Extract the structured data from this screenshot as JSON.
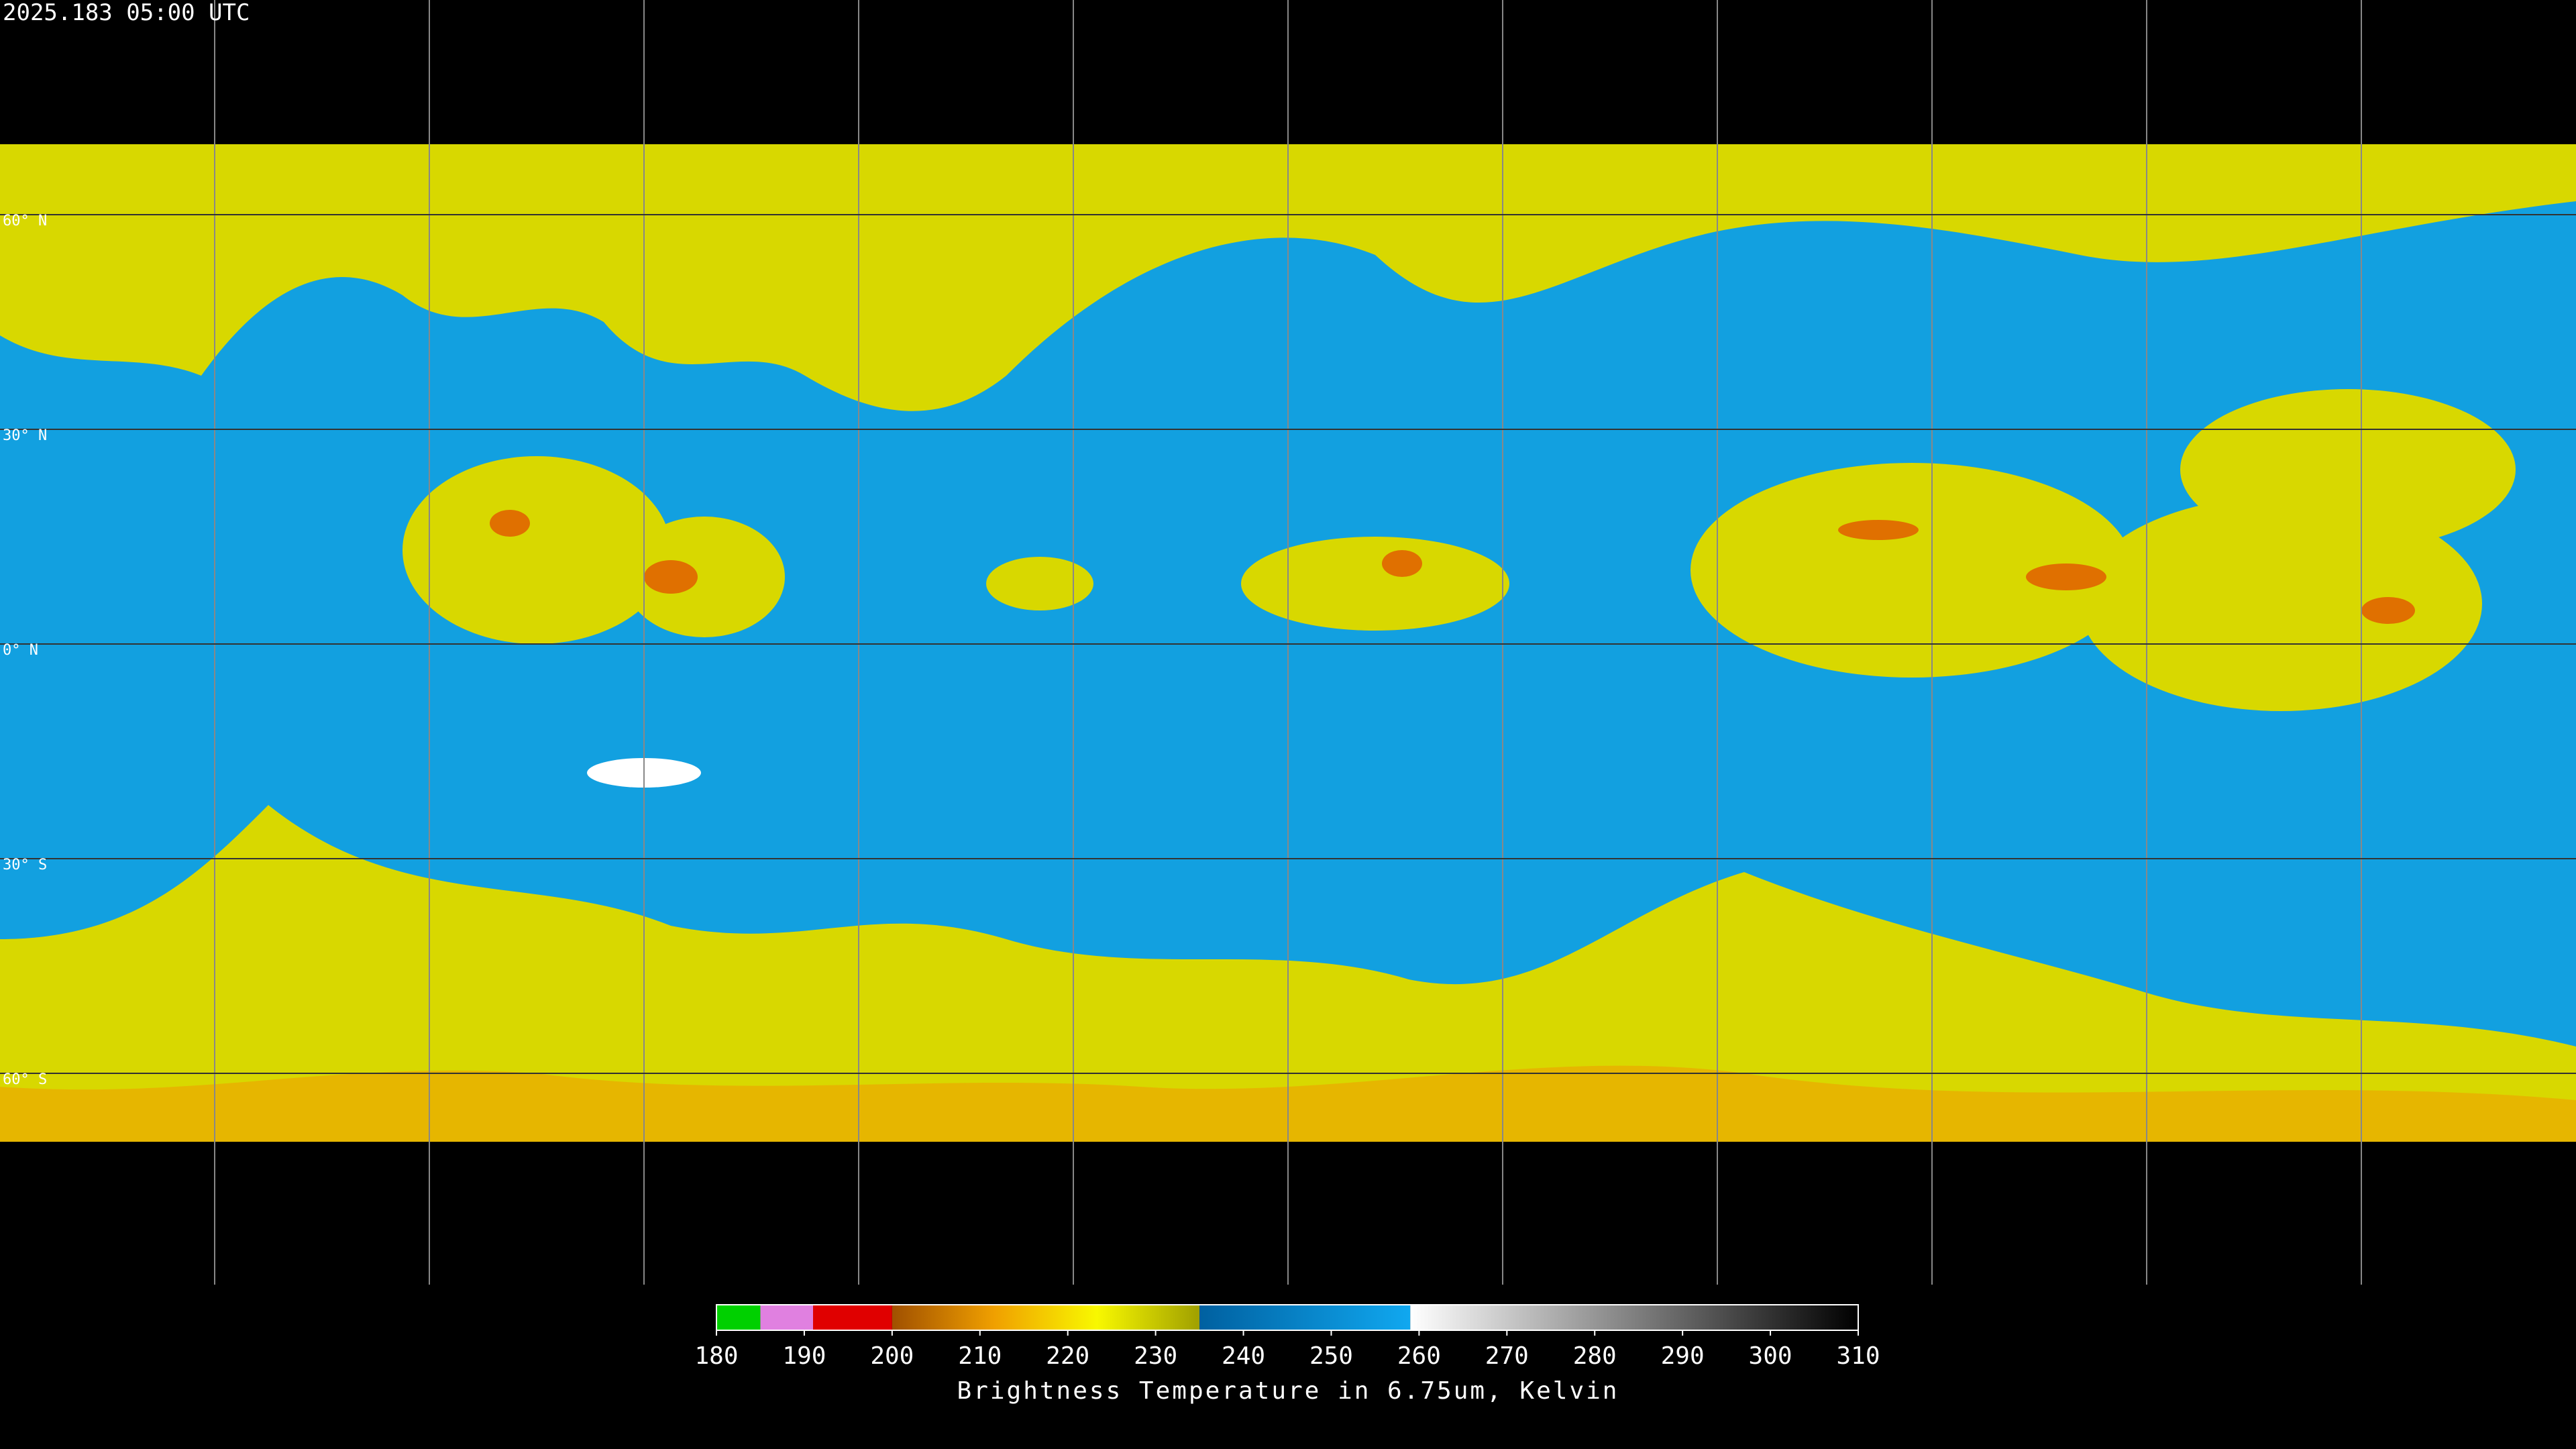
{
  "header": {
    "title": "2025.183 05:00 UTC"
  },
  "map": {
    "lat_lines": [
      {
        "value": 60,
        "label": "60° N"
      },
      {
        "value": 30,
        "label": "30° N"
      },
      {
        "value": 0,
        "label": "0° N"
      },
      {
        "value": -30,
        "label": "30° S"
      },
      {
        "value": -60,
        "label": "60° S"
      }
    ]
  },
  "colorbar": {
    "range": [
      180,
      310
    ],
    "ticks": [
      180,
      190,
      200,
      210,
      220,
      230,
      240,
      250,
      260,
      270,
      280,
      290,
      300,
      310
    ],
    "segments": [
      {
        "from": 180,
        "to": 185,
        "colors": [
          "#00d000",
          "#00d000"
        ]
      },
      {
        "from": 185,
        "to": 191,
        "colors": [
          "#e080e0",
          "#e080e0"
        ]
      },
      {
        "from": 191,
        "to": 200,
        "colors": [
          "#e00000",
          "#e00000"
        ]
      },
      {
        "from": 200,
        "to": 235,
        "colors": [
          "#a05000",
          "#f0a000",
          "#f8f800",
          "#a0a000"
        ]
      },
      {
        "from": 235,
        "to": 259,
        "colors": [
          "#0060a0",
          "#10a8f0"
        ]
      },
      {
        "from": 259,
        "to": 310,
        "colors": [
          "#ffffff",
          "#000000"
        ]
      }
    ],
    "label": "Brightness Temperature in 6.75um, Kelvin"
  }
}
